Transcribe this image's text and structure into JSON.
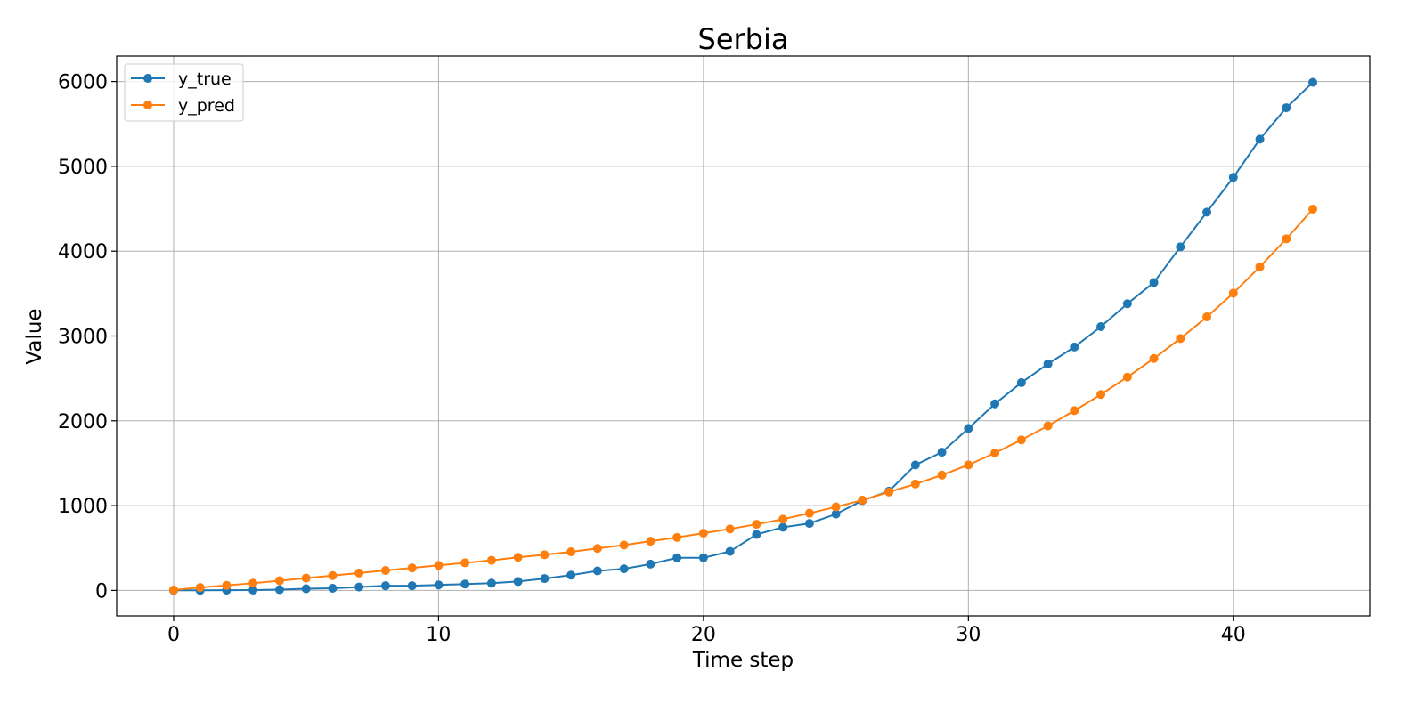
{
  "chart_data": {
    "type": "line",
    "title": "Serbia",
    "xlabel": "Time step",
    "ylabel": "Value",
    "xlim": [
      -2.15,
      45.15
    ],
    "ylim": [
      -300,
      6300
    ],
    "xticks": [
      0,
      10,
      20,
      30,
      40
    ],
    "yticks": [
      0,
      1000,
      2000,
      3000,
      4000,
      5000,
      6000
    ],
    "grid": true,
    "legend_position": "top-left",
    "x": [
      0,
      1,
      2,
      3,
      4,
      5,
      6,
      7,
      8,
      9,
      10,
      11,
      12,
      13,
      14,
      15,
      16,
      17,
      18,
      19,
      20,
      21,
      22,
      23,
      24,
      25,
      26,
      27,
      28,
      29,
      30,
      31,
      32,
      33,
      34,
      35,
      36,
      37,
      38,
      39,
      40,
      41,
      42,
      43
    ],
    "series": [
      {
        "name": "y_true",
        "color": "#1f77b4",
        "values": [
          1,
          1,
          3,
          4,
          9,
          20,
          25,
          40,
          55,
          55,
          65,
          75,
          85,
          105,
          140,
          180,
          230,
          255,
          310,
          385,
          385,
          460,
          660,
          745,
          790,
          900,
          1060,
          1170,
          1480,
          1630,
          1910,
          2200,
          2450,
          2670,
          2870,
          3110,
          3380,
          3630,
          4050,
          4460,
          4870,
          5320,
          5690,
          5990
        ]
      },
      {
        "name": "y_pred",
        "color": "#ff7f0e",
        "values": [
          5,
          35,
          60,
          85,
          115,
          145,
          175,
          205,
          235,
          265,
          295,
          325,
          355,
          390,
          420,
          455,
          495,
          535,
          580,
          625,
          675,
          725,
          780,
          840,
          910,
          985,
          1065,
          1160,
          1255,
          1360,
          1480,
          1620,
          1775,
          1940,
          2120,
          2310,
          2515,
          2735,
          2970,
          3225,
          3505,
          3815,
          4145,
          4495
        ]
      }
    ]
  }
}
